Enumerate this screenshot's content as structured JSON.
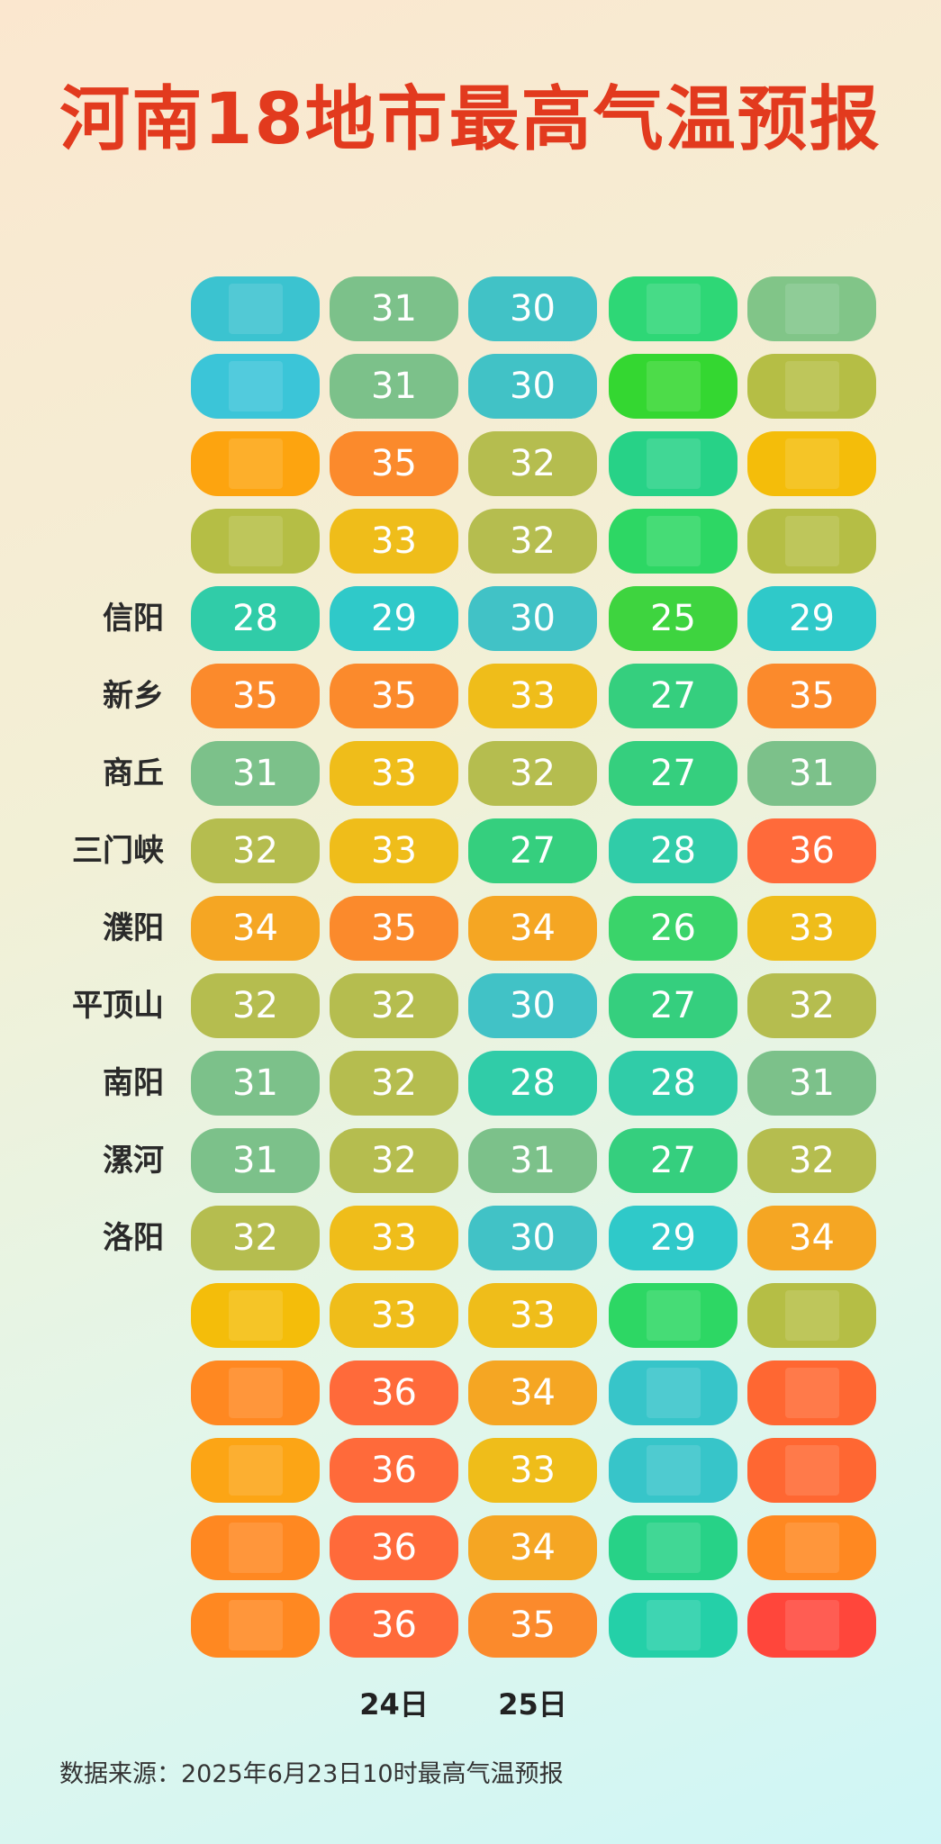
{
  "title": "河南18地市最高气温预报",
  "source": "数据来源：2025年6月23日10时最高气温预报",
  "chart_data": {
    "type": "table",
    "columns": [
      "",
      "24日",
      "25日",
      "",
      ""
    ],
    "colors": {
      "hot36": "#ff6a3a",
      "hot35": "#fb8a2c",
      "hot34": "#f5a623",
      "hot33": "#efbd1a",
      "warm32": "#b5bd4f",
      "mild31": "#7cc18a",
      "mild30": "#41c2c6",
      "cool29": "#2fc9c9",
      "cool28": "#30cca8",
      "cool27": "#35cf7e",
      "cool26": "#3ad46a",
      "cool25": "#3ed43f",
      "extreme": "#ff4a40"
    },
    "rows": [
      {
        "city": "",
        "values": [
          null,
          31,
          30,
          null,
          null
        ],
        "fills": [
          "#45c0cc",
          "#7cc18a",
          "#41c2c6",
          "#39d37b",
          "#85c38c"
        ]
      },
      {
        "city": "",
        "values": [
          null,
          31,
          30,
          null,
          null
        ],
        "fills": [
          "#45c2d4",
          "#7cc18a",
          "#41c2c6",
          "#3fd33c",
          "#b5bd4f"
        ]
      },
      {
        "city": "",
        "values": [
          null,
          35,
          32,
          null,
          null
        ],
        "fills": [
          "#f6a51d",
          "#fb8a2c",
          "#b5bd4f",
          "#33ce8a",
          "#efbd1a"
        ]
      },
      {
        "city": "",
        "values": [
          null,
          33,
          32,
          null,
          null
        ],
        "fills": [
          "#b5bd4f",
          "#efbd1a",
          "#b5bd4f",
          "#38d36a",
          "#b5bd4f"
        ]
      },
      {
        "city": "信阳",
        "values": [
          28,
          29,
          30,
          25,
          29
        ],
        "fills": [
          "#30cca8",
          "#2fc9c9",
          "#41c2c6",
          "#3ed43f",
          "#2fc9c9"
        ]
      },
      {
        "city": "新乡",
        "values": [
          35,
          35,
          33,
          27,
          35
        ],
        "fills": [
          "#fb8a2c",
          "#fb8a2c",
          "#efbd1a",
          "#35cf7e",
          "#fb8a2c"
        ]
      },
      {
        "city": "商丘",
        "values": [
          31,
          33,
          32,
          27,
          31
        ],
        "fills": [
          "#7cc18a",
          "#efbd1a",
          "#b5bd4f",
          "#35cf7e",
          "#7cc18a"
        ]
      },
      {
        "city": "三门峡",
        "values": [
          32,
          33,
          27,
          28,
          36
        ],
        "fills": [
          "#b5bd4f",
          "#efbd1a",
          "#35cf7e",
          "#30cca8",
          "#ff6a3a"
        ]
      },
      {
        "city": "濮阳",
        "values": [
          34,
          35,
          34,
          26,
          33
        ],
        "fills": [
          "#f5a623",
          "#fb8a2c",
          "#f5a623",
          "#3ad46a",
          "#efbd1a"
        ]
      },
      {
        "city": "平顶山",
        "values": [
          32,
          32,
          30,
          27,
          32
        ],
        "fills": [
          "#b5bd4f",
          "#b5bd4f",
          "#41c2c6",
          "#35cf7e",
          "#b5bd4f"
        ]
      },
      {
        "city": "南阳",
        "values": [
          31,
          32,
          28,
          28,
          31
        ],
        "fills": [
          "#7cc18a",
          "#b5bd4f",
          "#30cca8",
          "#30cca8",
          "#7cc18a"
        ]
      },
      {
        "city": "漯河",
        "values": [
          31,
          32,
          31,
          27,
          32
        ],
        "fills": [
          "#7cc18a",
          "#b5bd4f",
          "#7cc18a",
          "#35cf7e",
          "#b5bd4f"
        ]
      },
      {
        "city": "洛阳",
        "values": [
          32,
          33,
          30,
          29,
          34
        ],
        "fills": [
          "#b5bd4f",
          "#efbd1a",
          "#41c2c6",
          "#2fc9c9",
          "#f5a623"
        ]
      },
      {
        "city": "",
        "values": [
          null,
          33,
          33,
          null,
          null
        ],
        "fills": [
          "#efbd1a",
          "#efbd1a",
          "#efbd1a",
          "#38d36a",
          "#b5bd4f"
        ]
      },
      {
        "city": "",
        "values": [
          null,
          36,
          34,
          null,
          null
        ],
        "fills": [
          "#fb8a2c",
          "#ff6a3a",
          "#f5a623",
          "#41c2c6",
          "#ff6a3a"
        ]
      },
      {
        "city": "",
        "values": [
          null,
          36,
          33,
          null,
          null
        ],
        "fills": [
          "#f5a623",
          "#ff6a3a",
          "#efbd1a",
          "#41c2c6",
          "#ff6a3a"
        ]
      },
      {
        "city": "",
        "values": [
          null,
          36,
          34,
          null,
          null
        ],
        "fills": [
          "#fb8a2c",
          "#ff6a3a",
          "#f5a623",
          "#33ce8a",
          "#fb8a2c"
        ]
      },
      {
        "city": "",
        "values": [
          null,
          36,
          35,
          null,
          null
        ],
        "fills": [
          "#fb8a2c",
          "#ff6a3a",
          "#fb8a2c",
          "#30cca8",
          "#ff4a40"
        ]
      }
    ]
  }
}
